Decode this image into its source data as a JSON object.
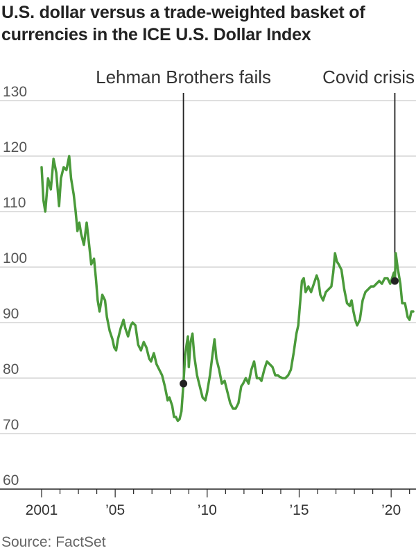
{
  "header": {
    "title": "U.S. dollar versus a trade-weighted basket of currencies in the ICE U.S. Dollar Index"
  },
  "footer": {
    "source": "Source: FactSet"
  },
  "colors": {
    "line": "#4a9a3a",
    "grid": "#cccccc",
    "annotation": "#222222"
  },
  "chart_data": {
    "type": "line",
    "title": "U.S. dollar versus a trade-weighted basket of currencies in the ICE U.S. Dollar Index",
    "xlabel": "",
    "ylabel": "",
    "xlim": [
      2001.0,
      2021.2
    ],
    "ylim": [
      60,
      130
    ],
    "grid": true,
    "y_ticks": [
      130,
      120,
      110,
      100,
      90,
      80,
      70,
      60
    ],
    "x_ticks": [
      {
        "label": "2001",
        "value": 2001
      },
      {
        "label": "’05",
        "value": 2005
      },
      {
        "label": "’10",
        "value": 2010
      },
      {
        "label": "’15",
        "value": 2015
      },
      {
        "label": "’20",
        "value": 2020
      }
    ],
    "annotations": [
      {
        "label": "Lehman Brothers fails",
        "x": 2008.71,
        "y": 79.0
      },
      {
        "label": "Covid crisis",
        "x": 2020.2,
        "y": 97.5
      }
    ],
    "series": [
      {
        "values": [
          [
            2001.0,
            118.0
          ],
          [
            2001.1,
            112.0
          ],
          [
            2001.2,
            110.0
          ],
          [
            2001.35,
            116.0
          ],
          [
            2001.5,
            114.0
          ],
          [
            2001.65,
            119.5
          ],
          [
            2001.8,
            117.0
          ],
          [
            2001.95,
            111.0
          ],
          [
            2002.05,
            116.0
          ],
          [
            2002.2,
            118.0
          ],
          [
            2002.35,
            117.5
          ],
          [
            2002.5,
            120.0
          ],
          [
            2002.6,
            116.0
          ],
          [
            2002.75,
            113.0
          ],
          [
            2002.85,
            110.0
          ],
          [
            2002.95,
            106.5
          ],
          [
            2003.05,
            108.0
          ],
          [
            2003.15,
            106.0
          ],
          [
            2003.3,
            104.0
          ],
          [
            2003.45,
            108.0
          ],
          [
            2003.55,
            105.0
          ],
          [
            2003.7,
            100.5
          ],
          [
            2003.85,
            101.5
          ],
          [
            2003.95,
            98.0
          ],
          [
            2004.05,
            94.0
          ],
          [
            2004.15,
            92.0
          ],
          [
            2004.3,
            95.0
          ],
          [
            2004.45,
            94.0
          ],
          [
            2004.55,
            91.0
          ],
          [
            2004.7,
            88.5
          ],
          [
            2004.85,
            87.0
          ],
          [
            2004.95,
            85.5
          ],
          [
            2005.05,
            85.0
          ],
          [
            2005.15,
            87.0
          ],
          [
            2005.3,
            89.0
          ],
          [
            2005.45,
            90.5
          ],
          [
            2005.55,
            89.0
          ],
          [
            2005.7,
            87.5
          ],
          [
            2005.85,
            89.5
          ],
          [
            2005.95,
            90.0
          ],
          [
            2006.1,
            89.5
          ],
          [
            2006.25,
            86.0
          ],
          [
            2006.4,
            85.0
          ],
          [
            2006.55,
            86.5
          ],
          [
            2006.7,
            85.5
          ],
          [
            2006.85,
            83.5
          ],
          [
            2006.95,
            83.0
          ],
          [
            2007.1,
            84.5
          ],
          [
            2007.25,
            82.5
          ],
          [
            2007.4,
            81.5
          ],
          [
            2007.55,
            80.5
          ],
          [
            2007.7,
            78.5
          ],
          [
            2007.85,
            76.0
          ],
          [
            2007.95,
            76.5
          ],
          [
            2008.1,
            75.0
          ],
          [
            2008.2,
            73.0
          ],
          [
            2008.3,
            73.0
          ],
          [
            2008.4,
            72.3
          ],
          [
            2008.5,
            72.6
          ],
          [
            2008.6,
            74.0
          ],
          [
            2008.7,
            78.5
          ],
          [
            2008.8,
            84.0
          ],
          [
            2008.88,
            86.0
          ],
          [
            2008.95,
            87.5
          ],
          [
            2009.0,
            82.0
          ],
          [
            2009.1,
            86.5
          ],
          [
            2009.2,
            88.0
          ],
          [
            2009.3,
            84.0
          ],
          [
            2009.45,
            80.5
          ],
          [
            2009.6,
            78.5
          ],
          [
            2009.75,
            76.5
          ],
          [
            2009.9,
            76.0
          ],
          [
            2010.0,
            77.5
          ],
          [
            2010.15,
            80.5
          ],
          [
            2010.3,
            84.5
          ],
          [
            2010.4,
            87.0
          ],
          [
            2010.5,
            83.5
          ],
          [
            2010.65,
            81.5
          ],
          [
            2010.8,
            79.0
          ],
          [
            2010.95,
            79.5
          ],
          [
            2011.1,
            77.5
          ],
          [
            2011.25,
            75.5
          ],
          [
            2011.4,
            74.5
          ],
          [
            2011.55,
            74.5
          ],
          [
            2011.7,
            75.5
          ],
          [
            2011.85,
            78.5
          ],
          [
            2011.95,
            79.0
          ],
          [
            2012.1,
            80.0
          ],
          [
            2012.25,
            79.0
          ],
          [
            2012.4,
            81.5
          ],
          [
            2012.55,
            83.0
          ],
          [
            2012.7,
            80.0
          ],
          [
            2012.85,
            80.0
          ],
          [
            2012.95,
            79.5
          ],
          [
            2013.1,
            81.5
          ],
          [
            2013.25,
            83.0
          ],
          [
            2013.4,
            82.5
          ],
          [
            2013.55,
            82.0
          ],
          [
            2013.7,
            80.5
          ],
          [
            2013.85,
            80.5
          ],
          [
            2013.95,
            80.2
          ],
          [
            2014.1,
            80.0
          ],
          [
            2014.25,
            80.0
          ],
          [
            2014.4,
            80.5
          ],
          [
            2014.55,
            81.5
          ],
          [
            2014.7,
            84.5
          ],
          [
            2014.85,
            88.0
          ],
          [
            2014.95,
            89.5
          ],
          [
            2015.05,
            93.5
          ],
          [
            2015.15,
            97.5
          ],
          [
            2015.25,
            98.0
          ],
          [
            2015.35,
            95.5
          ],
          [
            2015.5,
            96.5
          ],
          [
            2015.65,
            95.5
          ],
          [
            2015.8,
            97.0
          ],
          [
            2015.95,
            98.5
          ],
          [
            2016.05,
            97.5
          ],
          [
            2016.15,
            95.0
          ],
          [
            2016.3,
            94.0
          ],
          [
            2016.45,
            95.5
          ],
          [
            2016.6,
            96.0
          ],
          [
            2016.75,
            96.5
          ],
          [
            2016.85,
            99.0
          ],
          [
            2016.95,
            102.5
          ],
          [
            2017.05,
            101.0
          ],
          [
            2017.15,
            100.5
          ],
          [
            2017.3,
            99.5
          ],
          [
            2017.45,
            96.0
          ],
          [
            2017.6,
            93.5
          ],
          [
            2017.75,
            93.0
          ],
          [
            2017.85,
            94.0
          ],
          [
            2017.95,
            92.0
          ],
          [
            2018.05,
            90.5
          ],
          [
            2018.15,
            89.5
          ],
          [
            2018.3,
            90.5
          ],
          [
            2018.45,
            94.0
          ],
          [
            2018.6,
            95.5
          ],
          [
            2018.75,
            96.0
          ],
          [
            2018.9,
            96.5
          ],
          [
            2019.05,
            96.5
          ],
          [
            2019.2,
            97.0
          ],
          [
            2019.35,
            97.5
          ],
          [
            2019.5,
            97.0
          ],
          [
            2019.65,
            98.0
          ],
          [
            2019.8,
            98.0
          ],
          [
            2019.95,
            97.0
          ],
          [
            2020.05,
            98.0
          ],
          [
            2020.15,
            99.0
          ],
          [
            2020.2,
            97.5
          ],
          [
            2020.25,
            102.5
          ],
          [
            2020.35,
            100.0
          ],
          [
            2020.5,
            97.0
          ],
          [
            2020.6,
            93.5
          ],
          [
            2020.75,
            93.5
          ],
          [
            2020.9,
            91.0
          ],
          [
            2021.0,
            90.5
          ],
          [
            2021.1,
            92.0
          ],
          [
            2021.2,
            92.0
          ]
        ]
      }
    ]
  }
}
